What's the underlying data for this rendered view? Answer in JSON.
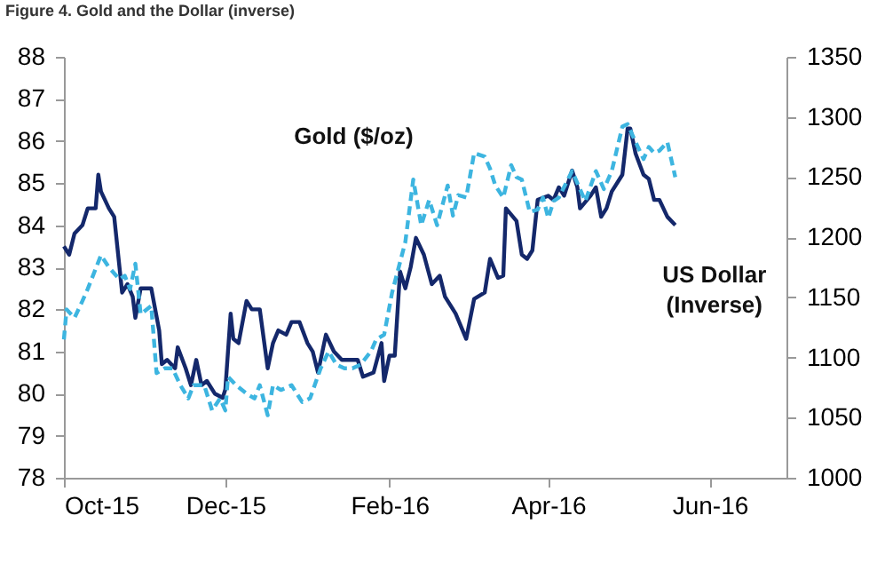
{
  "chart_data": {
    "type": "line",
    "title": "Figure 4. Gold and the Dollar (inverse)",
    "xlim": [
      "2015-10-01",
      "2016-06-30"
    ],
    "xticks": [
      {
        "value": "2015-10-01",
        "label": "Oct-15"
      },
      {
        "value": "2015-12-01",
        "label": "Dec-15"
      },
      {
        "value": "2016-02-01",
        "label": "Feb-16"
      },
      {
        "value": "2016-04-01",
        "label": "Apr-16"
      },
      {
        "value": "2016-06-01",
        "label": "Jun-16"
      }
    ],
    "ylim": [
      78,
      88
    ],
    "yticks": [
      78,
      79,
      80,
      81,
      82,
      83,
      84,
      85,
      86,
      87,
      88
    ],
    "y2lim": [
      1000,
      1350
    ],
    "y2ticks": [
      1000,
      1050,
      1100,
      1150,
      1200,
      1250,
      1300,
      1350
    ],
    "grid": false,
    "series": [
      {
        "name": "US Dollar\n(Inverse)",
        "color": "#14286b",
        "line_style": "solid",
        "x": [
          "2015-10-01",
          "2015-10-03",
          "2015-10-05",
          "2015-10-08",
          "2015-10-10",
          "2015-10-13",
          "2015-10-14",
          "2015-10-15",
          "2015-10-18",
          "2015-10-20",
          "2015-10-23",
          "2015-10-25",
          "2015-10-27",
          "2015-10-28",
          "2015-10-30",
          "2015-11-03",
          "2015-11-06",
          "2015-11-07",
          "2015-11-09",
          "2015-11-12",
          "2015-11-13",
          "2015-11-16",
          "2015-11-18",
          "2015-11-20",
          "2015-11-22",
          "2015-11-24",
          "2015-11-27",
          "2015-11-30",
          "2015-12-01",
          "2015-12-03",
          "2015-12-04",
          "2015-12-06",
          "2015-12-09",
          "2015-12-11",
          "2015-12-14",
          "2015-12-17",
          "2015-12-19",
          "2015-12-21",
          "2015-12-24",
          "2015-12-26",
          "2015-12-29",
          "2016-01-01",
          "2016-01-03",
          "2016-01-05",
          "2016-01-08",
          "2016-01-11",
          "2016-01-14",
          "2016-01-18",
          "2016-01-20",
          "2016-01-22",
          "2016-01-26",
          "2016-01-29",
          "2016-01-30",
          "2016-02-01",
          "2016-02-03",
          "2016-02-05",
          "2016-02-07",
          "2016-02-09",
          "2016-02-11",
          "2016-02-14",
          "2016-02-17",
          "2016-02-20",
          "2016-02-22",
          "2016-02-26",
          "2016-03-01",
          "2016-03-04",
          "2016-03-08",
          "2016-03-10",
          "2016-03-13",
          "2016-03-15",
          "2016-03-16",
          "2016-03-20",
          "2016-03-22",
          "2016-03-24",
          "2016-03-26",
          "2016-03-28",
          "2016-04-01",
          "2016-04-03",
          "2016-04-05",
          "2016-04-07",
          "2016-04-10",
          "2016-04-12",
          "2016-04-13",
          "2016-04-17",
          "2016-04-19",
          "2016-04-21",
          "2016-04-23",
          "2016-04-25",
          "2016-04-29",
          "2016-05-01",
          "2016-05-02",
          "2016-05-04",
          "2016-05-07",
          "2016-05-09",
          "2016-05-11",
          "2016-05-13",
          "2016-05-16",
          "2016-05-19"
        ],
        "values": [
          83.5,
          83.3,
          83.8,
          84.0,
          84.4,
          84.4,
          85.2,
          84.8,
          84.4,
          84.2,
          82.4,
          82.6,
          82.3,
          81.8,
          82.5,
          82.5,
          81.5,
          80.7,
          80.8,
          80.6,
          81.1,
          80.6,
          80.2,
          80.8,
          80.2,
          80.3,
          80.0,
          79.9,
          80.1,
          81.9,
          81.3,
          81.2,
          82.2,
          82.0,
          82.0,
          80.6,
          81.2,
          81.5,
          81.4,
          81.7,
          81.7,
          81.2,
          81.0,
          80.5,
          81.4,
          81.0,
          80.8,
          80.8,
          80.8,
          80.4,
          80.5,
          81.2,
          80.3,
          80.9,
          80.9,
          82.9,
          82.5,
          83.0,
          83.7,
          83.3,
          82.6,
          82.8,
          82.3,
          81.9,
          81.3,
          82.25,
          82.4,
          83.2,
          82.75,
          82.8,
          84.4,
          84.1,
          83.3,
          83.2,
          83.4,
          84.6,
          84.7,
          84.6,
          84.9,
          84.7,
          85.3,
          84.9,
          84.4,
          84.7,
          84.9,
          84.2,
          84.4,
          84.8,
          85.2,
          86.3,
          86.3,
          85.7,
          85.2,
          85.1,
          84.6,
          84.6,
          84.2,
          84.0
        ]
      },
      {
        "name": "Gold ($/oz)",
        "color": "#3db5e0",
        "line_style": "dashed",
        "axis": "y2",
        "x": [
          "2015-10-01",
          "2015-10-02",
          "2015-10-05",
          "2015-10-08",
          "2015-10-10",
          "2015-10-15",
          "2015-10-18",
          "2015-10-22",
          "2015-10-24",
          "2015-10-26",
          "2015-10-28",
          "2015-10-30",
          "2015-11-03",
          "2015-11-05",
          "2015-11-08",
          "2015-11-11",
          "2015-11-14",
          "2015-11-17",
          "2015-11-19",
          "2015-11-23",
          "2015-11-26",
          "2015-11-29",
          "2015-12-01",
          "2015-12-02",
          "2015-12-05",
          "2015-12-09",
          "2015-12-12",
          "2015-12-14",
          "2015-12-17",
          "2015-12-19",
          "2015-12-22",
          "2015-12-26",
          "2015-12-30",
          "2016-01-02",
          "2016-01-06",
          "2016-01-09",
          "2016-01-12",
          "2016-01-15",
          "2016-01-18",
          "2016-01-21",
          "2016-01-25",
          "2016-01-27",
          "2016-01-30",
          "2016-02-02",
          "2016-02-07",
          "2016-02-10",
          "2016-02-13",
          "2016-02-16",
          "2016-02-19",
          "2016-02-23",
          "2016-02-25",
          "2016-02-27",
          "2016-03-01",
          "2016-03-04",
          "2016-03-08",
          "2016-03-10",
          "2016-03-12",
          "2016-03-15",
          "2016-03-18",
          "2016-03-20",
          "2016-03-22",
          "2016-03-25",
          "2016-03-28",
          "2016-03-30",
          "2016-04-01",
          "2016-04-03",
          "2016-04-05",
          "2016-04-10",
          "2016-04-13",
          "2016-04-15",
          "2016-04-19",
          "2016-04-22",
          "2016-04-25",
          "2016-04-29",
          "2016-05-01",
          "2016-05-03",
          "2016-05-07",
          "2016-05-09",
          "2016-05-11",
          "2016-05-13",
          "2016-05-16",
          "2016-05-19"
        ],
        "values": [
          1115,
          1140,
          1133,
          1147,
          1157,
          1185,
          1175,
          1165,
          1168,
          1157,
          1178,
          1136,
          1143,
          1087,
          1091,
          1091,
          1077,
          1066,
          1077,
          1077,
          1056,
          1066,
          1056,
          1084,
          1077,
          1070,
          1066,
          1077,
          1052,
          1077,
          1073,
          1077,
          1063,
          1066,
          1091,
          1105,
          1094,
          1091,
          1091,
          1094,
          1105,
          1115,
          1119,
          1154,
          1196,
          1248,
          1210,
          1231,
          1210,
          1243,
          1218,
          1235,
          1233,
          1270,
          1267,
          1257,
          1243,
          1233,
          1260,
          1250,
          1248,
          1221,
          1223,
          1233,
          1216,
          1230,
          1233,
          1255,
          1240,
          1230,
          1255,
          1240,
          1255,
          1292,
          1294,
          1284,
          1265,
          1275,
          1270,
          1272,
          1279,
          1250
        ]
      }
    ]
  }
}
